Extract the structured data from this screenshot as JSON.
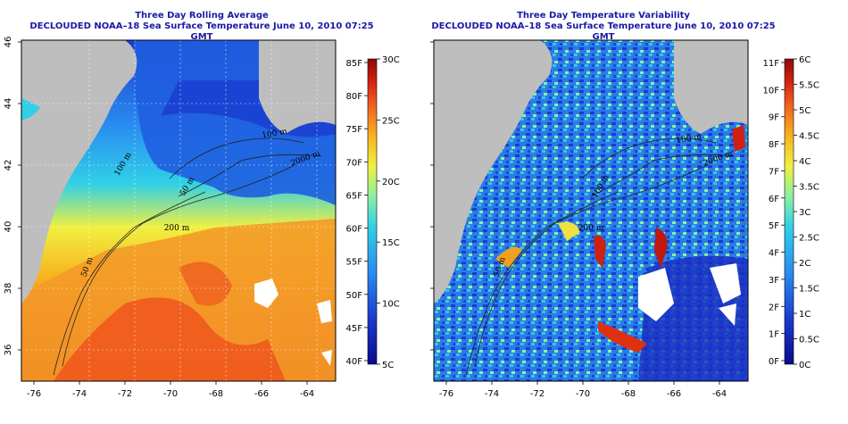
{
  "left_panel": {
    "title": "Three Day Rolling Average",
    "subtitle": "DECLOUDED NOAA–18 Sea Surface Temperature June 10, 2010 07:25 GMT",
    "lon_ticks": [
      "-76",
      "-74",
      "-72",
      "-70",
      "-68",
      "-66",
      "-64"
    ],
    "lat_ticks": [
      "36",
      "38",
      "40",
      "42",
      "44",
      "46"
    ],
    "legend_f": [
      "40F",
      "45F",
      "50F",
      "55F",
      "60F",
      "65F",
      "70F",
      "75F",
      "80F",
      "85F"
    ],
    "legend_c": [
      "5C",
      "10C",
      "15C",
      "20C",
      "25C",
      "30C"
    ],
    "contour_labels": [
      "50 m",
      "100 m",
      "200 m",
      "2000 m",
      "100 m",
      "50 m"
    ],
    "colors": [
      "#0a0a8c",
      "#1a3cd0",
      "#2a8cf0",
      "#30d0e8",
      "#8cf0a0",
      "#f0f040",
      "#f8b020",
      "#f06020",
      "#d02010",
      "#8c0a0a"
    ]
  },
  "right_panel": {
    "title": "Three Day Temperature Variability",
    "subtitle": "DECLOUDED NOAA–18 Sea Surface Temperature June 10, 2010 07:25 GMT",
    "lon_ticks": [
      "-76",
      "-74",
      "-72",
      "-70",
      "-68",
      "-66",
      "-64"
    ],
    "lat_ticks": [
      "36",
      "38",
      "40",
      "42",
      "44",
      "46"
    ],
    "legend_f": [
      "0F",
      "1F",
      "2F",
      "3F",
      "4F",
      "5F",
      "6F",
      "7F",
      "8F",
      "9F",
      "10F",
      "11F"
    ],
    "legend_c": [
      "0C",
      "0.5C",
      "1C",
      "1.5C",
      "2C",
      "2.5C",
      "3C",
      "3.5C",
      "4C",
      "4.5C",
      "5C",
      "5.5C",
      "6C"
    ],
    "contour_labels": [
      "50 m",
      "200 m",
      "100 m",
      "2000 m",
      "100 m"
    ],
    "colors": [
      "#0a0a8c",
      "#1a3cd0",
      "#2a8cf0",
      "#30d0e8",
      "#8cf0a0",
      "#f0f040",
      "#f8b020",
      "#f06020",
      "#d02010",
      "#8c0a0a"
    ]
  }
}
